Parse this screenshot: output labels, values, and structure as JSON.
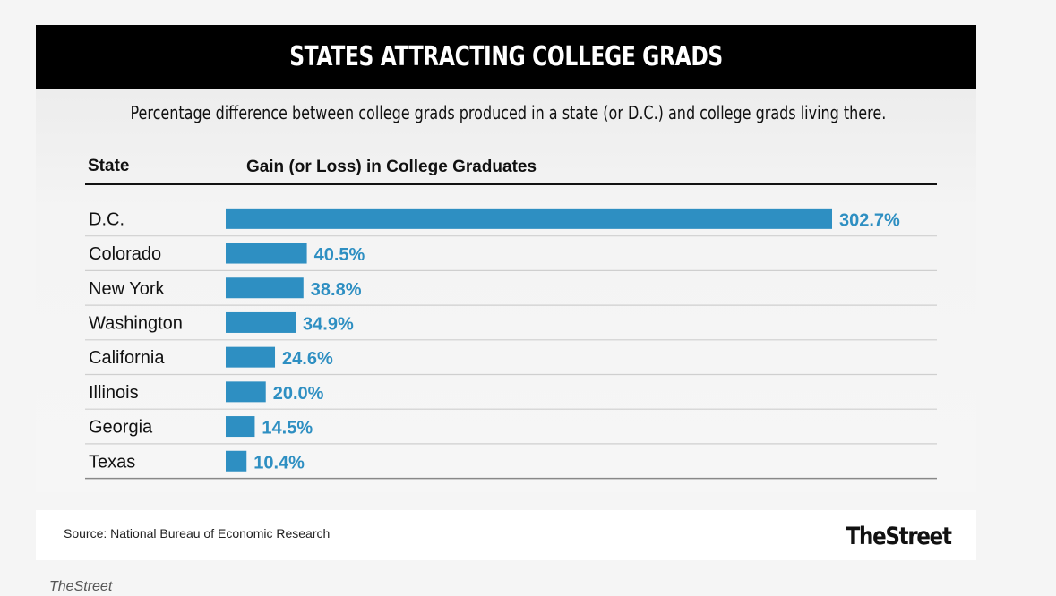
{
  "header": {
    "subtitle": "Percentage difference between college grads produced in a state (or D.C.) and college grads living there.",
    "col_state": "State",
    "col_value": "Gain (or Loss) in College Graduates"
  },
  "chart_data": {
    "type": "bar",
    "orientation": "horizontal",
    "title": "STATES ATTRACTING COLLEGE GRADS",
    "categories": [
      "D.C.",
      "Colorado",
      "New York",
      "Washington",
      "California",
      "Illinois",
      "Georgia",
      "Texas"
    ],
    "values": [
      302.7,
      40.5,
      38.8,
      34.9,
      24.6,
      20.0,
      14.5,
      10.4
    ],
    "value_labels": [
      "302.7%",
      "40.5%",
      "38.8%",
      "34.9%",
      "24.6%",
      "20.0%",
      "14.5%",
      "10.4%"
    ],
    "xlabel": "",
    "ylabel": "",
    "grid": false,
    "legend": "none",
    "bar_color": "#2e8fc2",
    "label_color": "#2e8fc2"
  },
  "footer": {
    "source": "Source: National Bureau of Economic Research",
    "logo": "TheStreet"
  },
  "caption": "TheStreet"
}
